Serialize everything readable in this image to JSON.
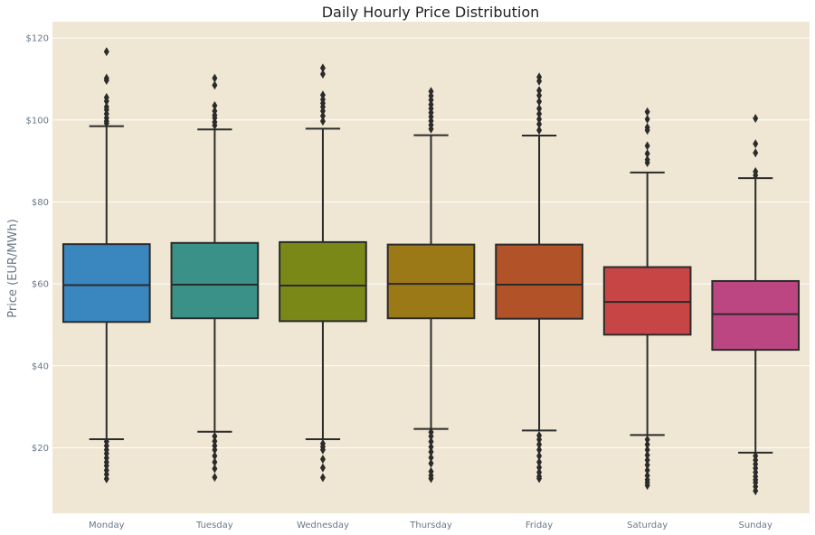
{
  "chart_data": {
    "type": "box",
    "title": "Daily Hourly Price Distribution",
    "xlabel": "",
    "ylabel": "Price (EUR/MWh)",
    "ylim": [
      4,
      124
    ],
    "yticks": [
      20,
      40,
      60,
      80,
      100,
      120
    ],
    "ytick_labels": [
      "$20",
      "$40",
      "$60",
      "$80",
      "$100",
      "$120"
    ],
    "grid": true,
    "colors": {
      "background": "#efe7d4",
      "grid": "#ffffff",
      "box_edge": "#2b2b2b"
    },
    "categories": [
      "Monday",
      "Tuesday",
      "Wednesday",
      "Thursday",
      "Friday",
      "Saturday",
      "Sunday"
    ],
    "boxes": [
      {
        "q1": 50.7,
        "median": 59.7,
        "q3": 69.7,
        "whisker_low": 22.1,
        "whisker_high": 98.5,
        "color": "#3a87c0",
        "outliers": [
          116.7,
          110.2,
          109.7,
          105.5,
          104.6,
          103.2,
          102.5,
          101.5,
          100.5,
          99.7,
          99.2,
          21.5,
          20.5,
          19.5,
          18.6,
          17.5,
          16.5,
          15.6,
          14.5,
          13.5,
          12.4
        ]
      },
      {
        "q1": 51.6,
        "median": 59.8,
        "q3": 70.0,
        "whisker_low": 23.9,
        "whisker_high": 97.7,
        "color": "#3a9187",
        "outliers": [
          110.2,
          108.5,
          103.5,
          102.2,
          101.2,
          100.5,
          99.5,
          98.7,
          22.8,
          21.6,
          20.5,
          19.5,
          18.0,
          16.5,
          14.9,
          12.8
        ]
      },
      {
        "q1": 50.9,
        "median": 59.6,
        "q3": 70.2,
        "whisker_low": 22.1,
        "whisker_high": 97.9,
        "color": "#798816",
        "outliers": [
          112.7,
          111.2,
          106.1,
          105.0,
          104.1,
          103.2,
          102.2,
          101.0,
          99.7,
          21.0,
          20.2,
          19.5,
          17.2,
          15.1,
          12.7
        ]
      },
      {
        "q1": 51.6,
        "median": 60.0,
        "q3": 69.6,
        "whisker_low": 24.6,
        "whisker_high": 96.3,
        "color": "#9b7916",
        "outliers": [
          107.0,
          105.9,
          104.9,
          103.8,
          102.8,
          101.8,
          100.8,
          99.8,
          98.8,
          97.8,
          23.8,
          22.8,
          21.5,
          20.2,
          19.0,
          17.6,
          16.2,
          14.2,
          13.2,
          12.5
        ]
      },
      {
        "q1": 51.5,
        "median": 59.8,
        "q3": 69.6,
        "whisker_low": 24.2,
        "whisker_high": 96.2,
        "color": "#b15229",
        "outliers": [
          110.5,
          109.5,
          107.2,
          106.0,
          104.5,
          102.8,
          101.5,
          100.2,
          99.0,
          97.5,
          23.0,
          22.0,
          20.8,
          19.5,
          18.0,
          16.5,
          15.2,
          14.0,
          13.0,
          12.5
        ]
      },
      {
        "q1": 47.6,
        "median": 55.6,
        "q3": 64.1,
        "whisker_low": 23.1,
        "whisker_high": 87.2,
        "color": "#c84545",
        "outliers": [
          102.0,
          100.2,
          98.2,
          97.5,
          93.7,
          91.8,
          90.3,
          89.6,
          22.0,
          20.8,
          19.5,
          18.2,
          17.0,
          15.8,
          14.5,
          13.2,
          12.2,
          11.5,
          10.8
        ]
      },
      {
        "q1": 43.9,
        "median": 52.6,
        "q3": 60.7,
        "whisker_low": 18.8,
        "whisker_high": 85.8,
        "color": "#bb4682",
        "outliers": [
          100.4,
          94.2,
          92.0,
          87.4,
          86.5,
          18.0,
          17.0,
          16.0,
          15.0,
          14.0,
          13.0,
          12.2,
          11.5,
          10.5,
          9.5
        ]
      }
    ]
  }
}
